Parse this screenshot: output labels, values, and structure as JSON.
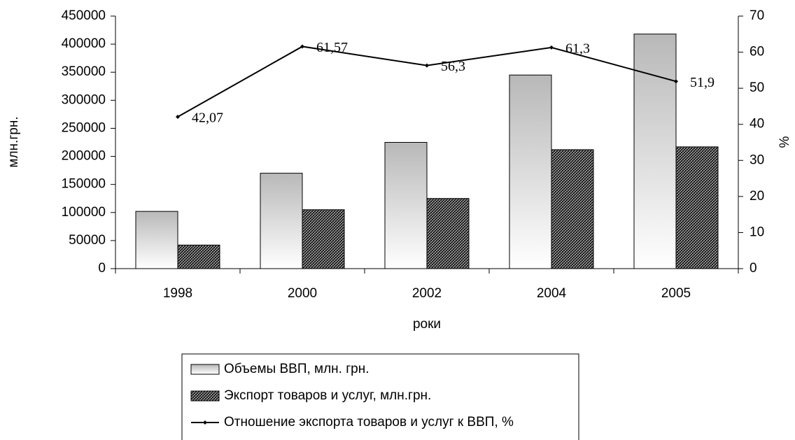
{
  "chart_data": {
    "type": "bar_line",
    "categories": [
      "1998",
      "2000",
      "2002",
      "2004",
      "2005"
    ],
    "series": [
      {
        "name": "Объемы ВВП, млн. грн.",
        "color": "#b8b8b8",
        "values": [
          102000,
          170000,
          225000,
          345000,
          418000
        ]
      },
      {
        "name": "Экспорт товаров и услуг, млн.грн.",
        "color": "#707070",
        "values": [
          42000,
          105000,
          125000,
          212000,
          217000
        ]
      },
      {
        "name": "Отношение экспорта товаров и услуг к ВВП, %",
        "color": "#000000",
        "axis": "y2",
        "values": [
          42.07,
          61.57,
          56.3,
          61.3,
          51.9
        ],
        "value_labels": [
          "42,07",
          "61,57",
          "56,3",
          "61,3",
          "51,9"
        ]
      }
    ],
    "xlabel": "роки",
    "ylabel": "млн.грн.",
    "y2label": "%",
    "ylim": [
      0,
      450000
    ],
    "yticks": [
      0,
      50000,
      100000,
      150000,
      200000,
      250000,
      300000,
      350000,
      400000,
      450000
    ],
    "y2lim": [
      0,
      70
    ],
    "y2ticks": [
      0,
      10,
      20,
      30,
      40,
      50,
      60,
      70
    ]
  }
}
